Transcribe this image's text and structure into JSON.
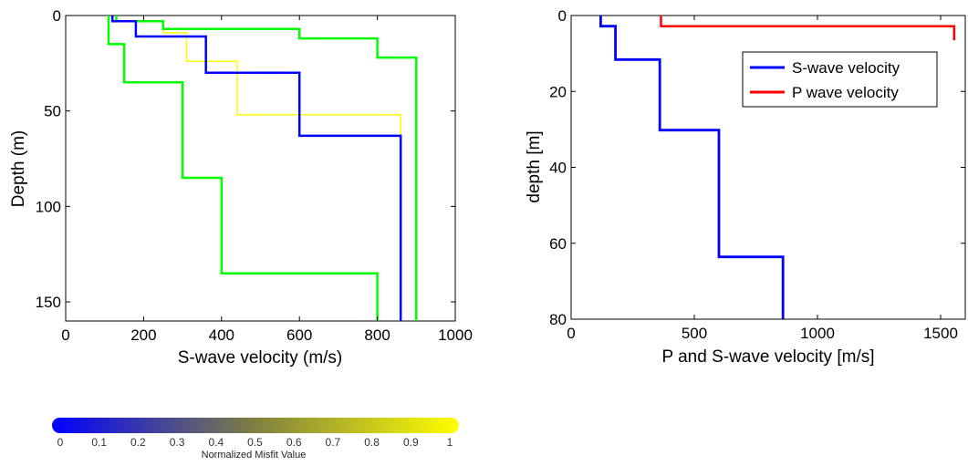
{
  "chart_data": [
    {
      "type": "line",
      "xlabel": "S-wave velocity (m/s)",
      "ylabel": "Depth (m)",
      "xlim": [
        0,
        1000
      ],
      "ylim": [
        0,
        160
      ],
      "y_inverted": true,
      "xticks": [
        0,
        200,
        400,
        600,
        800,
        1000
      ],
      "yticks": [
        0,
        50,
        100,
        150
      ],
      "grid": false,
      "series": [
        {
          "color": "#ffff00",
          "points": [
            [
              120,
              0
            ],
            [
              120,
              3
            ],
            [
              250,
              3
            ],
            [
              250,
              9
            ],
            [
              310,
              9
            ],
            [
              310,
              24
            ],
            [
              440,
              24
            ],
            [
              440,
              52
            ],
            [
              860,
              52
            ],
            [
              860,
              160
            ]
          ]
        },
        {
          "color": "#00ff00",
          "points": [
            [
              110,
              0
            ],
            [
              110,
              15
            ],
            [
              150,
              15
            ],
            [
              150,
              35
            ],
            [
              300,
              35
            ],
            [
              300,
              85
            ],
            [
              400,
              85
            ],
            [
              400,
              135
            ],
            [
              800,
              135
            ],
            [
              800,
              160
            ]
          ]
        },
        {
          "color": "#00ff00",
          "points": [
            [
              130,
              0
            ],
            [
              130,
              3
            ],
            [
              250,
              3
            ],
            [
              250,
              7
            ],
            [
              600,
              7
            ],
            [
              600,
              12
            ],
            [
              800,
              12
            ],
            [
              800,
              22
            ],
            [
              900,
              22
            ],
            [
              900,
              160
            ]
          ]
        },
        {
          "color": "#0000ff",
          "points": [
            [
              120,
              0
            ],
            [
              120,
              3
            ],
            [
              180,
              3
            ],
            [
              180,
              11
            ],
            [
              360,
              11
            ],
            [
              360,
              30
            ],
            [
              600,
              30
            ],
            [
              600,
              63
            ],
            [
              860,
              63
            ],
            [
              860,
              160
            ]
          ]
        }
      ]
    },
    {
      "type": "line",
      "xlabel": "P and S-wave velocity [m/s]",
      "ylabel": "depth [m]",
      "xlim": [
        0,
        1600
      ],
      "ylim": [
        0,
        80
      ],
      "y_inverted": true,
      "xticks": [
        0,
        500,
        1000,
        1500
      ],
      "yticks": [
        0,
        20,
        40,
        60,
        80
      ],
      "grid": false,
      "legend_position": "top-right",
      "series": [
        {
          "name": "S-wave velocity",
          "color": "#0000ff",
          "points": [
            [
              120,
              0
            ],
            [
              120,
              2.8
            ],
            [
              180,
              2.8
            ],
            [
              180,
              11.6
            ],
            [
              360,
              11.6
            ],
            [
              360,
              30.2
            ],
            [
              600,
              30.2
            ],
            [
              600,
              63.6
            ],
            [
              860,
              63.6
            ],
            [
              860,
              80
            ]
          ]
        },
        {
          "name": "P wave velocity",
          "color": "#ff0000",
          "points": [
            [
              365,
              0
            ],
            [
              365,
              2.8
            ],
            [
              1555,
              2.8
            ],
            [
              1555,
              6.5
            ]
          ]
        }
      ]
    }
  ],
  "colorbar": {
    "title": "Normalized Misfit Value",
    "ticks": [
      "0",
      "0.1",
      "0.2",
      "0.3",
      "0.4",
      "0.5",
      "0.6",
      "0.7",
      "0.8",
      "0.9",
      "1"
    ],
    "color_low": "#0000ff",
    "color_high": "#ffff00"
  }
}
